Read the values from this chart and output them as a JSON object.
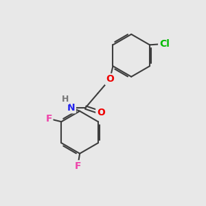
{
  "background_color": "#e8e8e8",
  "bond_color": "#3d3d3d",
  "bond_width": 1.5,
  "atom_colors": {
    "Cl": "#00bb00",
    "O": "#ee0000",
    "N": "#2222ee",
    "F": "#ee44aa",
    "H": "#777777",
    "C": "#3d3d3d"
  },
  "font_size": 10,
  "figsize": [
    3.0,
    3.0
  ],
  "dpi": 100
}
